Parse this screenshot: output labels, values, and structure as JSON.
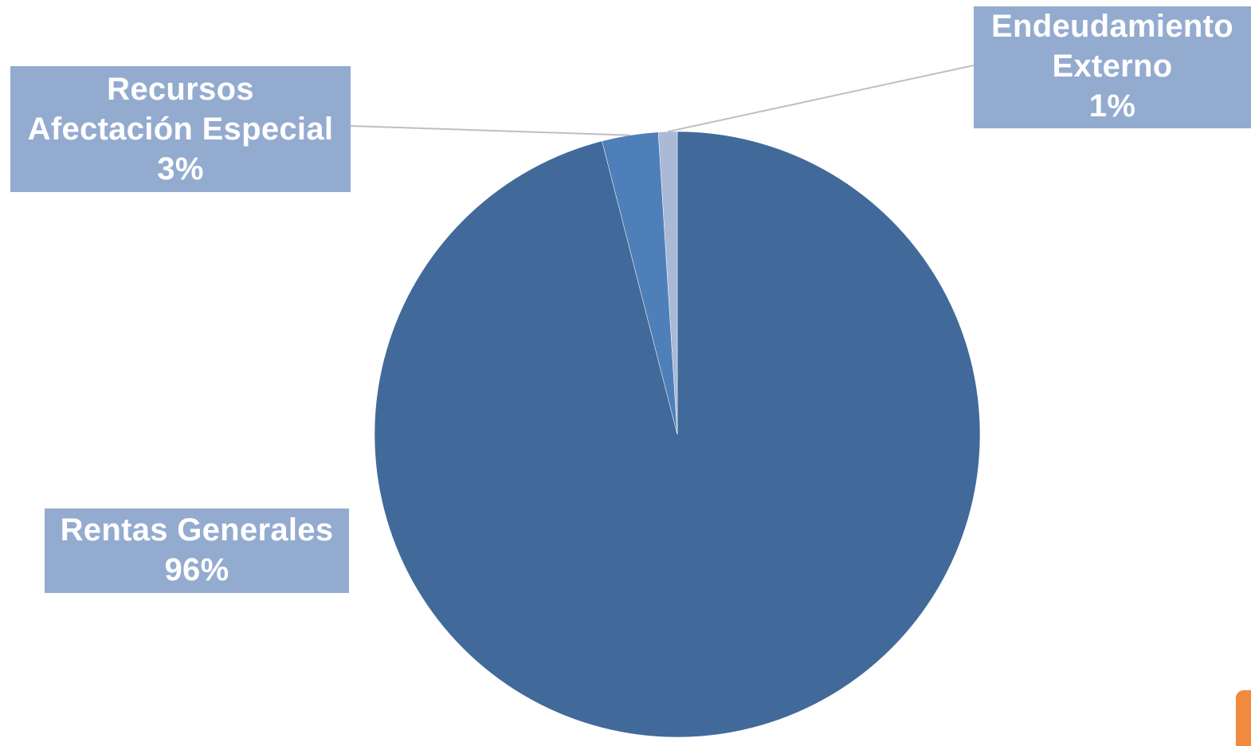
{
  "chart_data": {
    "type": "pie",
    "title": "",
    "slices": [
      {
        "name": "Rentas Generales",
        "value": 96,
        "label": "96%",
        "color": "#416a9a"
      },
      {
        "name": "Recursos Afectación Especial",
        "value": 3,
        "label": "3%",
        "color": "#4f7fb9"
      },
      {
        "name": "Endeudamiento Externo",
        "value": 1,
        "label": "1%",
        "color": "#a9b9d6"
      }
    ],
    "legend": "none",
    "label_box_color": "#94abd0",
    "leader_line_color": "#bfbfbf"
  },
  "labels": {
    "recursos": {
      "line1": "Recursos",
      "line2": "Afectación Especial",
      "pct": "3%"
    },
    "endeudamiento": {
      "line1": "Endeudamiento",
      "line2": "Externo",
      "pct": "1%"
    },
    "rentas": {
      "line1": "Rentas Generales",
      "pct": "96%"
    }
  },
  "accent_color": "#f08a3c"
}
